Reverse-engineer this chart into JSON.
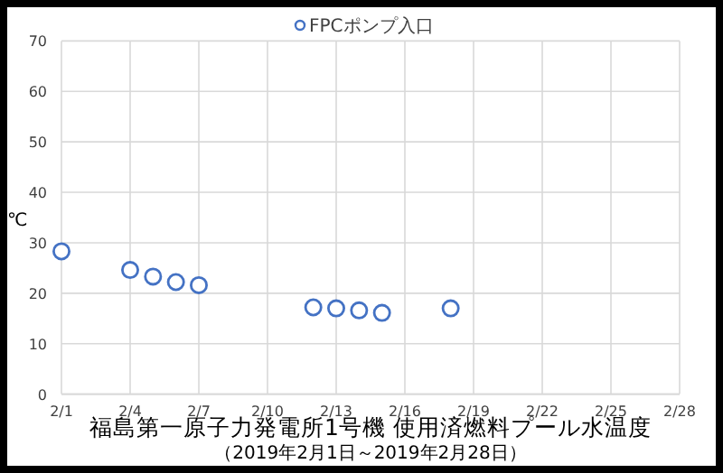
{
  "chart_data": {
    "type": "scatter",
    "title": "福島第一原子力発電所1号機 使用済燃料プール水温度",
    "subtitle": "（2019年2月1日～2019年2月28日）",
    "ylabel": "℃",
    "x": [
      "--02-01",
      "--02-04",
      "--02-05",
      "--02-06",
      "--02-07",
      "--02-12",
      "--02-13",
      "--02-14",
      "--02-15",
      "--02-18"
    ],
    "series": [
      {
        "name": "FPCポンプ入口",
        "color": "#4472c4",
        "values": [
          28.3,
          24.6,
          23.3,
          22.2,
          21.6,
          17.2,
          17.0,
          16.6,
          16.1,
          17.0
        ]
      }
    ],
    "marker": "circle",
    "legend": "top",
    "grid": true,
    "xlim": [
      "--02-01",
      "--02-28"
    ],
    "xticks": [
      {
        "value": "--02-01",
        "label": "2/1"
      },
      {
        "value": "--02-04",
        "label": "2/4"
      },
      {
        "value": "--02-07",
        "label": "2/7"
      },
      {
        "value": "--02-10",
        "label": "2/10"
      },
      {
        "value": "--02-13",
        "label": "2/13"
      },
      {
        "value": "--02-16",
        "label": "2/16"
      },
      {
        "value": "--02-19",
        "label": "2/19"
      },
      {
        "value": "--02-22",
        "label": "2/22"
      },
      {
        "value": "--02-25",
        "label": "2/25"
      },
      {
        "value": "--02-28",
        "label": "2/28"
      }
    ],
    "ylim": [
      0,
      70
    ],
    "yticks": [
      0,
      10,
      20,
      30,
      40,
      50,
      60,
      70
    ]
  }
}
